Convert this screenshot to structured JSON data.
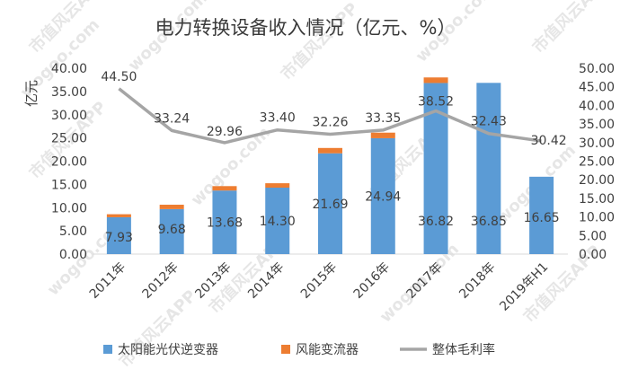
{
  "chart_data": {
    "type": "bar",
    "title": "电力转换设备收入情况（亿元、%）",
    "ylabel": "亿元",
    "categories": [
      "2011年",
      "2012年",
      "2013年",
      "2014年",
      "2015年",
      "2016年",
      "2017年",
      "2018年",
      "2019年H1"
    ],
    "ylim": [
      0,
      40
    ],
    "y2lim": [
      0,
      50
    ],
    "yticks": [
      "0.00",
      "5.00",
      "10.00",
      "15.00",
      "20.00",
      "25.00",
      "30.00",
      "35.00",
      "40.00"
    ],
    "y2ticks": [
      "0.00",
      "5.00",
      "10.00",
      "15.00",
      "20.00",
      "25.00",
      "30.00",
      "35.00",
      "40.00",
      "45.00",
      "50.00"
    ],
    "series": [
      {
        "name": "太阳能光伏逆变器",
        "kind": "bar-stacked",
        "axis": "left",
        "color": "#5b9bd5",
        "values": [
          7.93,
          9.68,
          13.68,
          14.3,
          21.69,
          24.94,
          36.82,
          36.85,
          16.65
        ],
        "labels": [
          "7.93",
          "9.68",
          "13.68",
          "14.30",
          "21.69",
          "24.94",
          "36.82",
          "36.85",
          "16.65"
        ]
      },
      {
        "name": "风能变流器",
        "kind": "bar-stacked",
        "axis": "left",
        "color": "#ed7d31",
        "values": [
          0.65,
          0.95,
          0.95,
          0.95,
          1.15,
          1.2,
          1.2,
          0,
          0
        ]
      },
      {
        "name": "整体毛利率",
        "kind": "line",
        "axis": "right",
        "color": "#a5a5a5",
        "values": [
          44.5,
          33.24,
          29.96,
          33.4,
          32.26,
          33.35,
          38.52,
          32.43,
          30.42
        ],
        "labels": [
          "44.50",
          "33.24",
          "29.96",
          "33.40",
          "32.26",
          "33.35",
          "38.52",
          "32.43",
          "30.42"
        ]
      }
    ],
    "legend_position": "bottom",
    "grid": false
  },
  "watermark": {
    "text_cn": "市值风云APP",
    "text_url": "wogoo.com"
  }
}
